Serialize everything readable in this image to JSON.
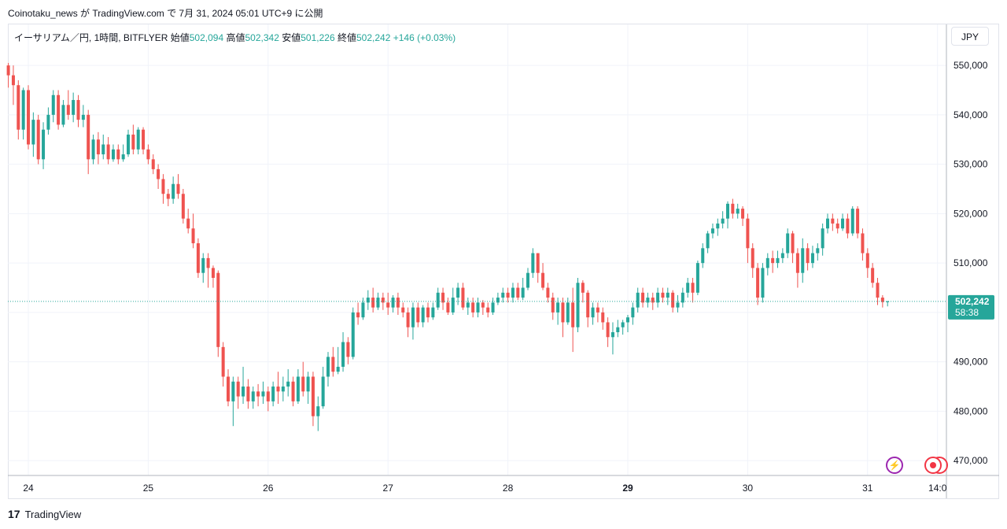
{
  "header": {
    "text": "Coinotaku_news が TradingView.com で 7月 31, 2024 05:01 UTC+9 に公開"
  },
  "legend": {
    "symbol": "イーサリアム／円, 1時間, BITFLYER",
    "open_label": "始値",
    "open": "502,094",
    "high_label": "高値",
    "high": "502,342",
    "low_label": "安値",
    "low": "501,226",
    "close_label": "終値",
    "close": "502,242",
    "change": "+146 (+0.03%)"
  },
  "currency_button": "JPY",
  "price_tag": {
    "price": "502,242",
    "countdown": "58:38"
  },
  "footer": {
    "brand": "TradingView",
    "logo": "17"
  },
  "icons": {
    "bolt": "lightning-icon",
    "record": "record-icon"
  },
  "colors": {
    "up": "#26a69a",
    "down": "#ef5350",
    "grid": "#f0f3fa",
    "price_line": "#26a69a"
  },
  "chart_data": {
    "type": "candlestick",
    "title": "",
    "xlabel": "",
    "ylabel": "",
    "ylim": [
      467000,
      554000
    ],
    "y_ticks": [
      "550,000",
      "540,000",
      "530,000",
      "520,000",
      "510,000",
      "500,000",
      "490,000",
      "480,000",
      "470,000"
    ],
    "y_tick_values": [
      550000,
      540000,
      530000,
      520000,
      510000,
      500000,
      490000,
      480000,
      470000
    ],
    "x_ticks": [
      "24",
      "25",
      "26",
      "27",
      "28",
      "29",
      "30",
      "31",
      "14:0"
    ],
    "x_tick_hours": [
      0,
      24,
      48,
      72,
      96,
      120,
      144,
      168,
      182
    ],
    "x_axis_start_hour": -4,
    "last_price": 502242,
    "candles": [
      [
        550000,
        548000,
        550500,
        545500
      ],
      [
        548000,
        546000,
        550000,
        542000
      ],
      [
        546000,
        537000,
        547000,
        535000
      ],
      [
        537000,
        545000,
        545500,
        535000
      ],
      [
        545000,
        534000,
        546000,
        533000
      ],
      [
        534000,
        539000,
        540500,
        531500
      ],
      [
        539000,
        531000,
        540000,
        530000
      ],
      [
        531000,
        537000,
        538500,
        529000
      ],
      [
        537000,
        540000,
        541500,
        536000
      ],
      [
        540000,
        544000,
        545000,
        538500
      ],
      [
        544000,
        538000,
        545000,
        537000
      ],
      [
        538000,
        542000,
        543000,
        537500
      ],
      [
        542000,
        540000,
        545000,
        539000
      ],
      [
        540000,
        543000,
        544500,
        538500
      ],
      [
        543000,
        539000,
        544000,
        537500
      ],
      [
        539000,
        540000,
        542000,
        537500
      ],
      [
        540000,
        531000,
        541000,
        528000
      ],
      [
        531000,
        535000,
        536000,
        530000
      ],
      [
        535000,
        532000,
        536500,
        530000
      ],
      [
        532000,
        534000,
        536000,
        531000
      ],
      [
        534000,
        531000,
        535500,
        530000
      ],
      [
        531000,
        533000,
        534000,
        530500
      ],
      [
        533000,
        531000,
        534000,
        530000
      ],
      [
        531000,
        532000,
        534000,
        530500
      ],
      [
        532000,
        536000,
        537000,
        531500
      ],
      [
        536000,
        533000,
        538000,
        532000
      ],
      [
        533000,
        537000,
        537500,
        532000
      ],
      [
        537000,
        533000,
        537500,
        532000
      ],
      [
        533000,
        531000,
        534000,
        530000
      ],
      [
        531000,
        529000,
        532000,
        528000
      ],
      [
        529000,
        527000,
        530000,
        525000
      ],
      [
        527000,
        524000,
        528000,
        522000
      ],
      [
        524000,
        523000,
        525000,
        521500
      ],
      [
        523000,
        526000,
        527500,
        522000
      ],
      [
        526000,
        524000,
        528000,
        523000
      ],
      [
        524000,
        519000,
        525000,
        518000
      ],
      [
        519000,
        517000,
        521000,
        516000
      ],
      [
        517000,
        514000,
        520000,
        513000
      ],
      [
        514000,
        508000,
        515000,
        507000
      ],
      [
        508000,
        511000,
        512000,
        506000
      ],
      [
        511000,
        509000,
        512000,
        505000
      ],
      [
        509000,
        507000,
        509500,
        505000
      ],
      [
        508000,
        493000,
        508500,
        491000
      ],
      [
        493000,
        487000,
        494000,
        485000
      ],
      [
        487000,
        482000,
        488500,
        481000
      ],
      [
        482000,
        486000,
        487000,
        477000
      ],
      [
        486000,
        483000,
        487000,
        480500
      ],
      [
        483000,
        485000,
        489000,
        481500
      ],
      [
        485000,
        482000,
        486500,
        480500
      ],
      [
        482000,
        484000,
        485000,
        480500
      ],
      [
        484000,
        483000,
        485500,
        481000
      ],
      [
        483000,
        484000,
        486000,
        481500
      ],
      [
        484000,
        482000,
        485000,
        480000
      ],
      [
        482000,
        485000,
        486000,
        481000
      ],
      [
        485000,
        484000,
        488000,
        481500
      ],
      [
        484000,
        485000,
        487000,
        482000
      ],
      [
        485000,
        486000,
        488500,
        483000
      ],
      [
        486000,
        482000,
        487000,
        481000
      ],
      [
        482000,
        487000,
        488500,
        481500
      ],
      [
        487000,
        484000,
        490000,
        483000
      ],
      [
        484000,
        487000,
        488000,
        481500
      ],
      [
        487000,
        479000,
        488000,
        477000
      ],
      [
        479000,
        481000,
        483000,
        476000
      ],
      [
        481000,
        487000,
        489000,
        480500
      ],
      [
        487000,
        491000,
        492000,
        485000
      ],
      [
        491000,
        488000,
        493000,
        487000
      ],
      [
        488000,
        489000,
        493000,
        487500
      ],
      [
        489000,
        494000,
        496000,
        488000
      ],
      [
        494000,
        491000,
        495000,
        489500
      ],
      [
        491000,
        500000,
        501000,
        490500
      ],
      [
        500000,
        499000,
        502000,
        497500
      ],
      [
        499000,
        502000,
        503000,
        498500
      ],
      [
        502000,
        503000,
        504500,
        500500
      ],
      [
        503000,
        501000,
        505000,
        500000
      ],
      [
        501000,
        503000,
        504000,
        500500
      ],
      [
        503000,
        502000,
        504000,
        500500
      ],
      [
        502000,
        501000,
        504000,
        499500
      ],
      [
        501000,
        503000,
        503500,
        500000
      ],
      [
        503000,
        501000,
        504000,
        499500
      ],
      [
        501000,
        500000,
        502000,
        499000
      ],
      [
        500000,
        497000,
        501000,
        495000
      ],
      [
        497000,
        501000,
        502000,
        494500
      ],
      [
        501000,
        498000,
        502000,
        497000
      ],
      [
        498000,
        501000,
        501500,
        497000
      ],
      [
        501000,
        499000,
        502000,
        498000
      ],
      [
        499000,
        501000,
        502000,
        498500
      ],
      [
        501000,
        504000,
        505000,
        500500
      ],
      [
        504000,
        502000,
        505000,
        500500
      ],
      [
        502000,
        500000,
        503000,
        499500
      ],
      [
        500000,
        503000,
        505000,
        499500
      ],
      [
        503000,
        505000,
        506000,
        501500
      ],
      [
        505000,
        501000,
        506000,
        500500
      ],
      [
        501000,
        502000,
        503000,
        499500
      ],
      [
        502000,
        500000,
        503000,
        499000
      ],
      [
        500000,
        502000,
        503000,
        499000
      ],
      [
        502000,
        501000,
        502500,
        499500
      ],
      [
        501000,
        500000,
        502000,
        499000
      ],
      [
        500000,
        502000,
        503000,
        499500
      ],
      [
        502000,
        503000,
        504000,
        501500
      ],
      [
        503000,
        504000,
        505000,
        502000
      ],
      [
        504000,
        503000,
        505000,
        502000
      ],
      [
        503000,
        505000,
        506000,
        502000
      ],
      [
        505000,
        503000,
        506000,
        502500
      ],
      [
        503000,
        505000,
        507000,
        502500
      ],
      [
        505000,
        508000,
        509000,
        504500
      ],
      [
        508000,
        512000,
        513000,
        507000
      ],
      [
        512000,
        508000,
        512000,
        506000
      ],
      [
        508000,
        505000,
        510000,
        504500
      ],
      [
        505000,
        503000,
        506000,
        502000
      ],
      [
        503000,
        500000,
        504000,
        498500
      ],
      [
        500000,
        502000,
        503000,
        497500
      ],
      [
        502000,
        498000,
        503000,
        495000
      ],
      [
        498000,
        502000,
        503000,
        497500
      ],
      [
        502000,
        497000,
        505000,
        492000
      ],
      [
        497000,
        506000,
        507000,
        496000
      ],
      [
        506000,
        504000,
        506500,
        502000
      ],
      [
        504000,
        499000,
        504500,
        497000
      ],
      [
        499000,
        501000,
        502000,
        497500
      ],
      [
        501000,
        500000,
        502000,
        498000
      ],
      [
        500000,
        498000,
        501000,
        496500
      ],
      [
        498000,
        495000,
        499000,
        493000
      ],
      [
        495000,
        496000,
        498000,
        491500
      ],
      [
        496000,
        497000,
        498500,
        495000
      ],
      [
        497000,
        498000,
        498500,
        495500
      ],
      [
        498000,
        499000,
        499500,
        496000
      ],
      [
        499000,
        501000,
        502000,
        497500
      ],
      [
        501000,
        504000,
        505000,
        500000
      ],
      [
        504000,
        502000,
        505000,
        501000
      ],
      [
        502000,
        503000,
        504000,
        501000
      ],
      [
        503000,
        502000,
        504000,
        500500
      ],
      [
        502000,
        504000,
        505000,
        501000
      ],
      [
        504000,
        503000,
        505000,
        502000
      ],
      [
        503000,
        504000,
        505000,
        501500
      ],
      [
        504000,
        501000,
        504500,
        500000
      ],
      [
        501000,
        502000,
        503500,
        500000
      ],
      [
        502000,
        504000,
        505000,
        501000
      ],
      [
        504000,
        506000,
        507000,
        503000
      ],
      [
        506000,
        504000,
        507000,
        502000
      ],
      [
        504000,
        510000,
        510500,
        503500
      ],
      [
        510000,
        513000,
        514000,
        509000
      ],
      [
        513000,
        516000,
        516500,
        512000
      ],
      [
        516000,
        517000,
        518000,
        515000
      ],
      [
        517000,
        518000,
        519000,
        515500
      ],
      [
        518000,
        519000,
        520500,
        517000
      ],
      [
        519000,
        522000,
        522500,
        517000
      ],
      [
        522000,
        520000,
        523000,
        519000
      ],
      [
        520000,
        521000,
        522000,
        519000
      ],
      [
        521000,
        519000,
        521500,
        517500
      ],
      [
        519000,
        513000,
        520000,
        510000
      ],
      [
        513000,
        509000,
        514000,
        507000
      ],
      [
        509000,
        503000,
        510000,
        501500
      ],
      [
        503000,
        509000,
        510000,
        502000
      ],
      [
        509000,
        511000,
        512000,
        507500
      ],
      [
        511000,
        510000,
        512500,
        508000
      ],
      [
        510000,
        511000,
        512500,
        509000
      ],
      [
        511000,
        512000,
        513000,
        510000
      ],
      [
        512000,
        516000,
        517000,
        511000
      ],
      [
        516000,
        512000,
        516500,
        510000
      ],
      [
        512000,
        508000,
        513000,
        505000
      ],
      [
        508000,
        513000,
        515000,
        506000
      ],
      [
        513000,
        510000,
        514000,
        508500
      ],
      [
        510000,
        512000,
        513500,
        509000
      ],
      [
        512000,
        513000,
        514000,
        510500
      ],
      [
        513000,
        517000,
        518000,
        511500
      ],
      [
        517000,
        519000,
        520000,
        516000
      ],
      [
        519000,
        518000,
        520000,
        516500
      ],
      [
        518000,
        517000,
        519000,
        516000
      ],
      [
        517000,
        519000,
        520000,
        516500
      ],
      [
        519000,
        516000,
        520000,
        515000
      ],
      [
        516000,
        521000,
        521500,
        515500
      ],
      [
        521000,
        516000,
        521500,
        515000
      ],
      [
        516000,
        512000,
        517000,
        510500
      ],
      [
        512000,
        509000,
        513000,
        507000
      ],
      [
        509000,
        506000,
        510000,
        505000
      ],
      [
        506000,
        503000,
        507000,
        501500
      ],
      [
        503000,
        502094,
        503500,
        501000
      ],
      [
        502094,
        502242,
        502342,
        501226
      ]
    ]
  }
}
